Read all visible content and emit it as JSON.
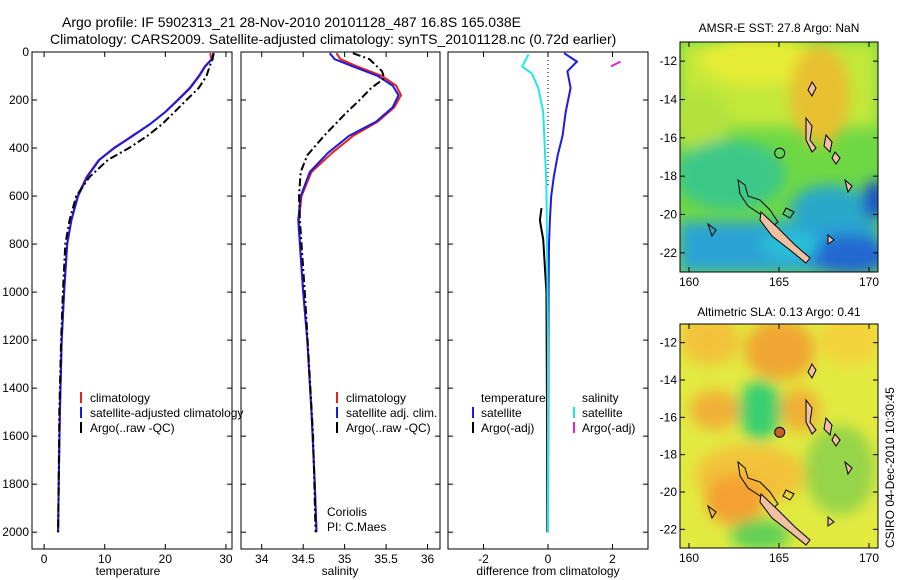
{
  "title": {
    "line1": "Argo profile: IF 5902313_21 28-Nov-2010 20101128_487 16.8S 165.038E",
    "line2": "Climatology: CARS2009. Satellite-adjusted climatology: synTS_20101128.nc (0.72d earlier)"
  },
  "side_stamp": "CSIRO 04-Dec-2010 10:30:45",
  "colors": {
    "clim": "#e8201a",
    "sat": "#1a1ae6",
    "argo": "#000000",
    "sal_sat": "#22e6e6",
    "sal_argo": "#e020e0"
  },
  "chart_data": [
    {
      "type": "line",
      "id": "temperature",
      "xlabel": "temperature",
      "ylabel": "",
      "xlim": [
        -2,
        31
      ],
      "ylim": [
        0,
        2070
      ],
      "y_inverted": true,
      "xticks": [
        0,
        10,
        20,
        30
      ],
      "yticks": [
        0,
        200,
        400,
        600,
        800,
        1000,
        1200,
        1400,
        1600,
        1800,
        2000
      ],
      "legend": [
        "climatology",
        "satellite-adjusted climatology",
        "Argo(..raw -QC)"
      ],
      "series": [
        {
          "name": "climatology",
          "style": "solid",
          "color": "#e8201a",
          "x": [
            27.4,
            27.6,
            26.5,
            25.5,
            24.0,
            22.0,
            20.0,
            17.5,
            14.5,
            11.5,
            9.0,
            7.0,
            5.5,
            4.5,
            3.8,
            3.3,
            2.9,
            2.6,
            2.4,
            2.3
          ],
          "y": [
            5,
            30,
            60,
            100,
            150,
            200,
            250,
            300,
            350,
            400,
            450,
            520,
            600,
            700,
            800,
            1000,
            1200,
            1500,
            1800,
            2000
          ]
        },
        {
          "name": "satellite-adjusted climatology",
          "style": "solid",
          "color": "#1a1ae6",
          "x": [
            27.9,
            27.7,
            26.6,
            25.6,
            24.1,
            22.1,
            20.0,
            17.5,
            14.6,
            11.6,
            9.1,
            7.1,
            5.6,
            4.5,
            3.8,
            3.3,
            2.9,
            2.6,
            2.4,
            2.3
          ],
          "y": [
            5,
            30,
            60,
            100,
            150,
            200,
            250,
            300,
            350,
            400,
            450,
            520,
            600,
            700,
            800,
            1000,
            1200,
            1500,
            1800,
            2000
          ]
        },
        {
          "name": "Argo(..raw -QC)",
          "style": "dashdot",
          "color": "#000000",
          "x": [
            28.0,
            27.8,
            27.3,
            26.8,
            25.5,
            23.5,
            21.5,
            19.5,
            17.0,
            14.0,
            10.5,
            7.5,
            5.3,
            4.2,
            3.5,
            3.1,
            2.8,
            2.5,
            2.4,
            2.3
          ],
          "y": [
            5,
            30,
            60,
            100,
            150,
            200,
            250,
            300,
            350,
            400,
            450,
            520,
            600,
            700,
            800,
            1000,
            1200,
            1500,
            1800,
            2000
          ]
        }
      ]
    },
    {
      "type": "line",
      "id": "salinity",
      "xlabel": "salinity",
      "xlim": [
        33.75,
        36.15
      ],
      "ylim": [
        0,
        2070
      ],
      "y_inverted": true,
      "xticks": [
        34,
        34.5,
        35,
        35.5,
        36
      ],
      "legend": [
        "climatology",
        "satellite adj. clim.",
        "Argo(..raw -QC)"
      ],
      "annotation": [
        "Coriolis",
        "PI: C.Maes"
      ],
      "series": [
        {
          "name": "climatology",
          "style": "solid",
          "color": "#e8201a",
          "x": [
            34.9,
            34.95,
            35.15,
            35.45,
            35.62,
            35.68,
            35.6,
            35.4,
            35.1,
            34.85,
            34.6,
            34.48,
            34.45,
            34.46,
            34.5,
            34.55,
            34.6,
            34.64,
            34.66
          ],
          "y": [
            5,
            30,
            60,
            100,
            140,
            180,
            230,
            290,
            350,
            420,
            500,
            600,
            700,
            800,
            1000,
            1200,
            1500,
            1800,
            2000
          ]
        },
        {
          "name": "satellite adj. clim.",
          "style": "solid",
          "color": "#1a1ae6",
          "x": [
            34.82,
            34.88,
            35.1,
            35.4,
            35.58,
            35.65,
            35.58,
            35.38,
            35.05,
            34.8,
            34.58,
            34.47,
            34.44,
            34.46,
            34.5,
            34.55,
            34.6,
            34.64,
            34.66
          ],
          "y": [
            5,
            30,
            60,
            100,
            140,
            180,
            230,
            290,
            350,
            420,
            500,
            600,
            700,
            800,
            1000,
            1200,
            1500,
            1800,
            2000
          ]
        },
        {
          "name": "Argo(..raw -QC)",
          "style": "dashdot",
          "color": "#000000",
          "x": [
            35.1,
            35.3,
            35.45,
            35.48,
            35.32,
            35.18,
            35.0,
            34.75,
            34.55,
            34.47,
            34.45,
            34.46,
            34.48,
            34.52,
            34.57,
            34.62,
            34.65
          ],
          "y": [
            5,
            30,
            80,
            110,
            150,
            200,
            260,
            350,
            430,
            500,
            600,
            700,
            800,
            1000,
            1300,
            1600,
            2000
          ]
        }
      ]
    },
    {
      "type": "line",
      "id": "difference",
      "xlabel": "difference from climatology",
      "xlim": [
        -3.1,
        3.1
      ],
      "ylim": [
        0,
        2070
      ],
      "y_inverted": true,
      "xticks": [
        -2,
        0,
        2
      ],
      "legend_groups": [
        {
          "heading": "temperature",
          "items": [
            "satellite",
            "Argo(-adj)"
          ]
        },
        {
          "heading": "salinity",
          "items": [
            "satellite",
            "Argo(-adj)"
          ]
        }
      ],
      "series": [
        {
          "name": "temperature satellite",
          "style": "solid",
          "color": "#1a1ae6",
          "x": [
            0.5,
            0.9,
            0.6,
            0.7,
            0.55,
            0.45,
            0.3,
            0.18,
            0.1,
            0.06,
            0.03,
            0.02,
            0.01,
            0.0
          ],
          "y": [
            5,
            40,
            80,
            150,
            250,
            350,
            430,
            520,
            600,
            700,
            800,
            1000,
            1500,
            2000
          ]
        },
        {
          "name": "temperature Argo(-adj)",
          "style": "solid",
          "color": "#000000",
          "x": [
            -0.2,
            -0.25,
            -0.2,
            -0.15,
            -0.05,
            -0.03,
            -0.02
          ],
          "y": [
            650,
            700,
            740,
            780,
            1000,
            1500,
            2000
          ]
        },
        {
          "name": "salinity satellite",
          "style": "solid",
          "color": "#22e6e6",
          "x": [
            -0.6,
            -0.8,
            -0.5,
            -0.3,
            -0.15,
            -0.1,
            -0.05,
            -0.03,
            0.0,
            0.0
          ],
          "y": [
            10,
            60,
            90,
            150,
            250,
            400,
            550,
            800,
            1200,
            2000
          ]
        },
        {
          "name": "salinity Argo(-adj)",
          "style": "solid",
          "color": "#e020e0",
          "x": [
            1.95,
            2.1,
            2.25
          ],
          "y": [
            60,
            50,
            40
          ]
        }
      ]
    },
    {
      "type": "heatmap",
      "id": "sst_map",
      "title": "AMSR-E SST: 27.8 Argo: NaN",
      "xlim": [
        159.5,
        170.5
      ],
      "ylim": [
        -23,
        -11
      ],
      "xticks": [
        160,
        165,
        170
      ],
      "yticks": [
        -12,
        -14,
        -16,
        -18,
        -20,
        -22
      ],
      "marker": {
        "lon": 165.038,
        "lat": -16.8
      }
    },
    {
      "type": "heatmap",
      "id": "sla_map",
      "title": "Altimetric SLA: 0.13 Argo: 0.41",
      "xlim": [
        159.5,
        170.5
      ],
      "ylim": [
        -23,
        -11
      ],
      "xticks": [
        160,
        165,
        170
      ],
      "yticks": [
        -12,
        -14,
        -16,
        -18,
        -20,
        -22
      ],
      "marker": {
        "lon": 165.038,
        "lat": -16.8
      }
    }
  ]
}
